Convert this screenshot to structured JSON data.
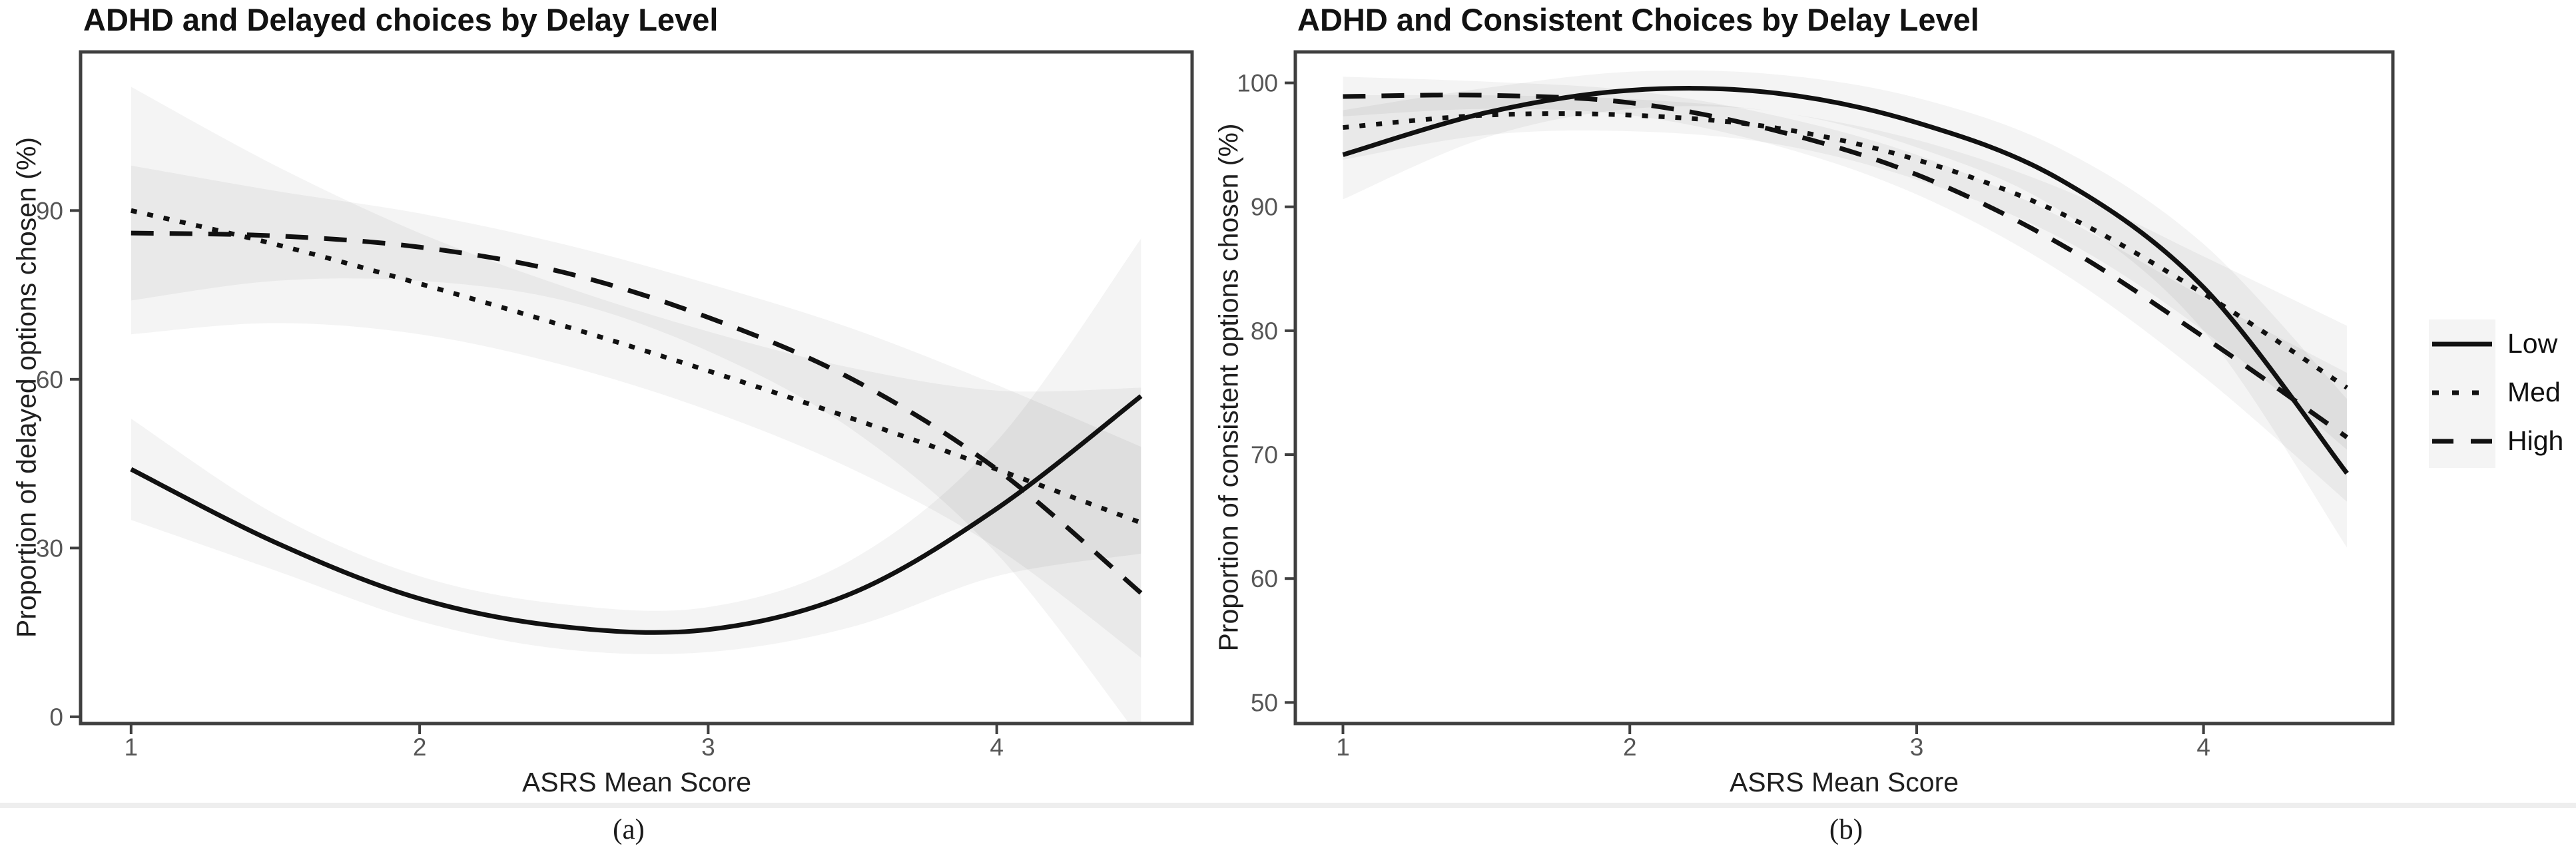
{
  "page": {
    "background": "#ffffff",
    "divider_color": "#eeeeee"
  },
  "colors": {
    "line": "#111111",
    "band_fill": "#000000",
    "band_alpha": 0.045,
    "axis": "#3f3f3f",
    "tick_label": "#565656",
    "title_text": "#121212",
    "label_text": "#1f1f1f"
  },
  "legend": {
    "position": "right",
    "items": [
      {
        "label": "Low",
        "style": "solid"
      },
      {
        "label": "Med",
        "style": "dotted"
      },
      {
        "label": "High",
        "style": "dashed"
      }
    ]
  },
  "figures": [
    {
      "caption": "(a)",
      "title": "ADHD and Delayed choices by Delay Level",
      "xlabel": "ASRS Mean Score",
      "ylabel": "Proportion of delayed options chosen (%)",
      "chart_data": {
        "type": "line",
        "grid": false,
        "legend_position": "shared-right",
        "x": [
          1,
          1.5,
          2,
          2.5,
          3,
          3.5,
          4,
          4.5
        ],
        "xticks": [
          1,
          2,
          3,
          4
        ],
        "yticks": [
          0,
          30,
          60,
          90
        ],
        "xlim": [
          0.825,
          4.677
        ],
        "ylim": [
          -1.2,
          118.2
        ],
        "series": [
          {
            "name": "Low",
            "style": "solid",
            "values": [
              44,
              31,
              21,
              16,
              15.5,
              22,
              37,
              57
            ],
            "band_upper": [
              53,
              36,
              25,
              20,
              19.5,
              28,
              49,
              85
            ],
            "band_lower": [
              35,
              26,
              17,
              12,
              11.5,
              16,
              25,
              29
            ]
          },
          {
            "name": "Med",
            "style": "dotted",
            "values": [
              90,
              84,
              77,
              69.5,
              61.5,
              53,
              44,
              34.5
            ],
            "band_upper": [
              112,
              98,
              86,
              76.5,
              68.5,
              62,
              58,
              58.5
            ],
            "band_lower": [
              68,
              70,
              68,
              62.5,
              54.5,
              44,
              30,
              10.5
            ]
          },
          {
            "name": "High",
            "style": "dashed",
            "values": [
              86,
              85.5,
              83.5,
              79,
              71,
              60,
              44,
              22
            ],
            "band_upper": [
              98,
              93.5,
              89.5,
              84,
              77,
              69,
              59,
              48
            ],
            "band_lower": [
              74,
              77.5,
              77.5,
              74,
              65,
              51,
              29,
              -4
            ]
          }
        ]
      }
    },
    {
      "caption": "(b)",
      "title": "ADHD and Consistent Choices by Delay Level",
      "xlabel": "ASRS Mean Score",
      "ylabel": "Proportion of consistent options chosen (%)",
      "chart_data": {
        "type": "line",
        "grid": false,
        "legend_position": "shared-right",
        "x": [
          1,
          1.5,
          2,
          2.5,
          3,
          3.5,
          4,
          4.5
        ],
        "xticks": [
          1,
          2,
          3,
          4
        ],
        "yticks": [
          50,
          60,
          70,
          80,
          90,
          100
        ],
        "xlim": [
          0.834,
          4.66
        ],
        "ylim": [
          48.3,
          102.5
        ],
        "series": [
          {
            "name": "Low",
            "style": "solid",
            "values": [
              94.2,
              97.6,
              99.4,
              99.2,
              96.8,
              92.2,
              83.5,
              68.5
            ],
            "band_upper": [
              97.8,
              99.6,
              100.9,
              100.7,
              98.8,
              94.7,
              87,
              74.5
            ],
            "band_lower": [
              90.6,
              95.6,
              97.9,
              97.7,
              94.8,
              89.7,
              80,
              62.5
            ]
          },
          {
            "name": "Med",
            "style": "dotted",
            "values": [
              96.4,
              97.4,
              97.4,
              96.4,
              93.8,
              89.5,
              83,
              75.4
            ],
            "band_upper": [
              99,
              99,
              98.7,
              97.7,
              95.4,
              91.5,
              86,
              80.4
            ],
            "band_lower": [
              93.8,
              95.8,
              96.1,
              95.1,
              92.2,
              87.5,
              80,
              70.4
            ]
          },
          {
            "name": "High",
            "style": "dashed",
            "values": [
              98.9,
              99,
              98.4,
              96.2,
              92.6,
              87,
              79.5,
              71.4
            ],
            "band_upper": [
              100.5,
              100.1,
              99.4,
              97.4,
              94.2,
              89.2,
              82.7,
              76.6
            ],
            "band_lower": [
              97.3,
              97.9,
              97.4,
              95,
              91,
              84.8,
              76.3,
              66.2
            ]
          }
        ]
      }
    }
  ]
}
